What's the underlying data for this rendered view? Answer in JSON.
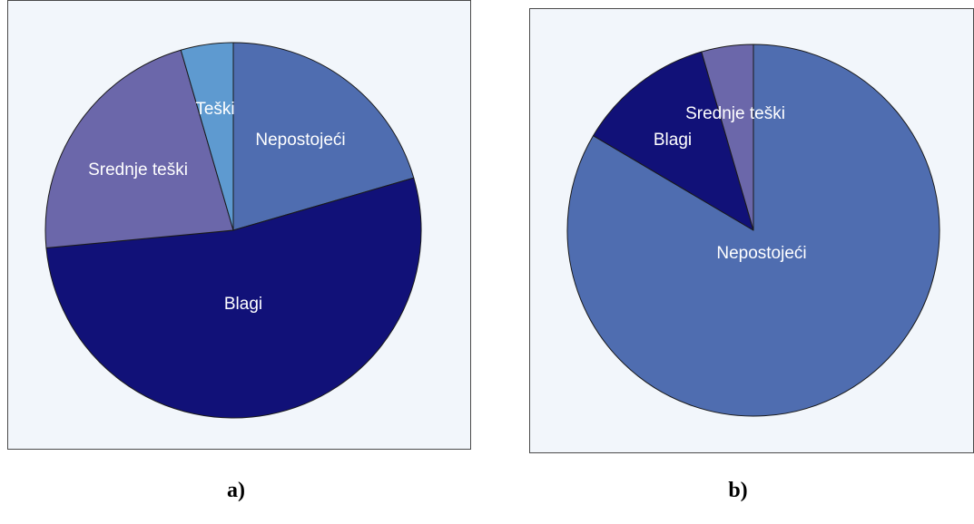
{
  "chart_data": [
    {
      "type": "pie",
      "panel_label": "a)",
      "start_angle_deg": 90,
      "direction": "clockwise",
      "slices": [
        {
          "label": "Nepostojeći",
          "value": 20.5,
          "color": "#4F6DB0"
        },
        {
          "label": "Blagi",
          "value": 53.0,
          "color": "#111178"
        },
        {
          "label": "Srednje teški",
          "value": 22.0,
          "color": "#6B67AA"
        },
        {
          "label": "Teški",
          "value": 4.5,
          "color": "#5E9AD0"
        }
      ],
      "background_color": "#F2F6FB",
      "border_color": "#4A4A4A"
    },
    {
      "type": "pie",
      "panel_label": "b)",
      "start_angle_deg": 90,
      "direction": "clockwise",
      "slices": [
        {
          "label": "Nepostojeći",
          "value": 83.5,
          "color": "#4F6DB0"
        },
        {
          "label": "Blagi",
          "value": 12.0,
          "color": "#111178"
        },
        {
          "label": "Srednje teški",
          "value": 4.5,
          "color": "#6B67AA"
        }
      ],
      "background_color": "#F2F6FB",
      "border_color": "#4A4A4A"
    }
  ]
}
